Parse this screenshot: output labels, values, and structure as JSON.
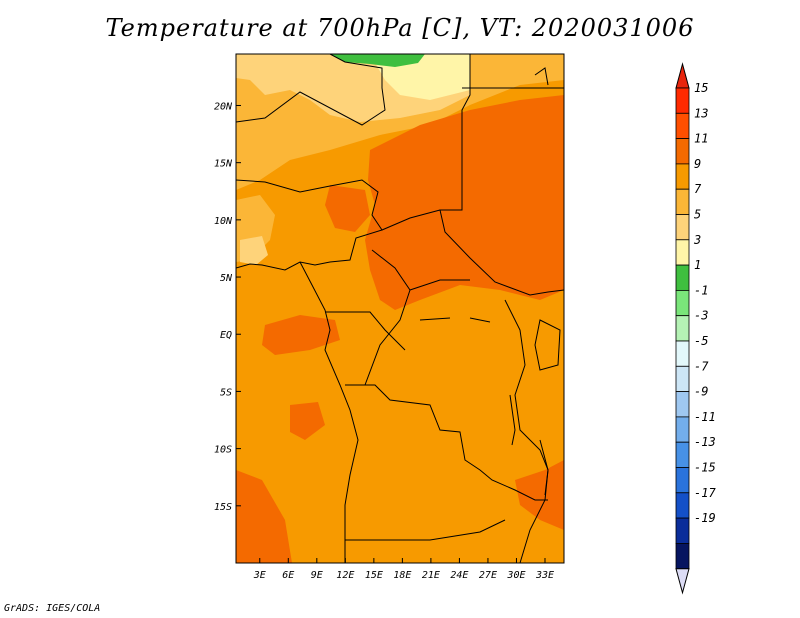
{
  "title": "Temperature at 700hPa [C], VT: 2020031006",
  "credit": "GrADS: IGES/COLA",
  "map": {
    "x_ticks": [
      "3E",
      "6E",
      "9E",
      "12E",
      "15E",
      "18E",
      "21E",
      "24E",
      "27E",
      "30E",
      "33E"
    ],
    "x_tick_values": [
      3,
      6,
      9,
      12,
      15,
      18,
      21,
      24,
      27,
      30,
      33
    ],
    "y_ticks": [
      "20N",
      "15N",
      "10N",
      "5N",
      "EQ",
      "5S",
      "10S",
      "15S"
    ],
    "y_tick_values": [
      20,
      15,
      10,
      5,
      0,
      -5,
      -10,
      -15
    ],
    "lon_range": [
      0.5,
      35
    ],
    "lat_range": [
      -20,
      24.5
    ]
  },
  "colorbar": {
    "labels": [
      "15",
      "13",
      "11",
      "9",
      "7",
      "5",
      "3",
      "1",
      "-1",
      "-3",
      "-5",
      "-7",
      "-9",
      "-11",
      "-13",
      "-15",
      "-17",
      "-19"
    ],
    "colors": [
      "#ff2a00",
      "#ff4f00",
      "#f46a00",
      "#f79a00",
      "#fbb637",
      "#fed37a",
      "#fff5a8",
      "#3fbf3f",
      "#7ae57a",
      "#b5f2b5",
      "#e3f8fb",
      "#cde6f6",
      "#9fc8f1",
      "#73aeec",
      "#4791e6",
      "#2a73dc",
      "#1450c8",
      "#0a2d9a",
      "#061560"
    ],
    "top_arrow_color": "#e8250d",
    "bottom_arrow_color": "#dcdcf5"
  }
}
